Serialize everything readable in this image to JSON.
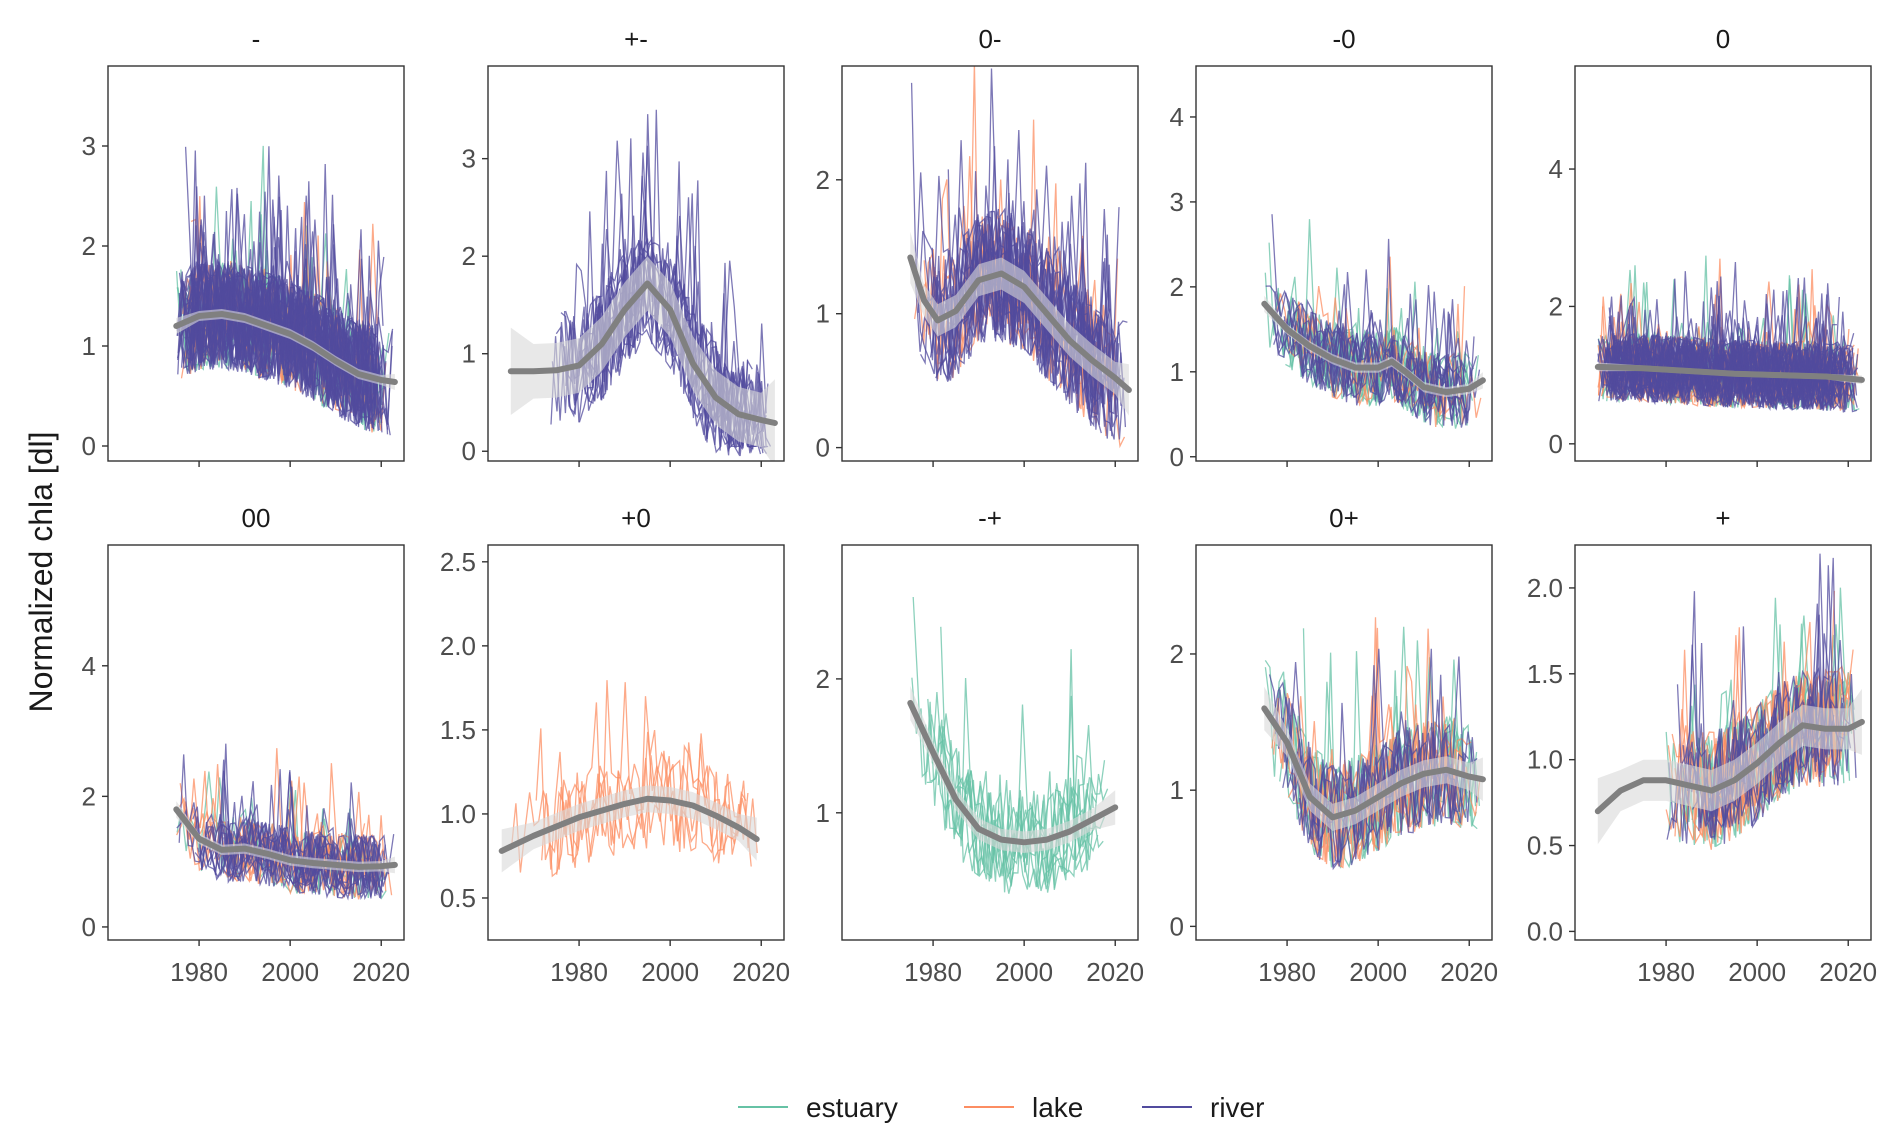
{
  "figure": {
    "ylabel": "Normalized chla [dl]",
    "legend": {
      "position": "bottom",
      "items": [
        {
          "key": "estuary",
          "label": "estuary",
          "color": "#66c2a5"
        },
        {
          "key": "lake",
          "label": "lake",
          "color": "#fc8d62"
        },
        {
          "key": "river",
          "label": "river",
          "color": "#514b9e"
        }
      ]
    },
    "smooth_color": "#808080",
    "ribbon_color": "#d9d9d9"
  },
  "chart_data": [
    {
      "type": "line",
      "title": "-",
      "xlim": [
        1960,
        2025
      ],
      "ylim": [
        -0.15,
        3.8
      ],
      "yticks": [
        0,
        1,
        2,
        3
      ],
      "ytick_labels": [
        "0",
        "1",
        "2",
        "3"
      ],
      "xticks": [
        1980,
        2000,
        2020
      ],
      "xtick_labels": [
        "1980",
        "2000",
        "2020"
      ],
      "series_mix": {
        "estuary": 10,
        "lake": 6,
        "river": 40
      },
      "dense": true,
      "xrange": [
        1975,
        2023
      ],
      "mean_level": 1.1,
      "spread": 0.55,
      "smooth": {
        "x": [
          1975,
          1980,
          1985,
          1990,
          1995,
          2000,
          2005,
          2010,
          2015,
          2020,
          2023
        ],
        "y": [
          1.2,
          1.3,
          1.32,
          1.28,
          1.2,
          1.12,
          1.0,
          0.85,
          0.72,
          0.66,
          0.64
        ]
      },
      "ribbon_halfwidth": 0.05
    },
    {
      "type": "line",
      "title": "+-",
      "xlim": [
        1960,
        2025
      ],
      "ylim": [
        -0.1,
        3.95
      ],
      "yticks": [
        0,
        1,
        2,
        3
      ],
      "ytick_labels": [
        "0",
        "1",
        "2",
        "3"
      ],
      "xticks": [
        1980,
        2000,
        2020
      ],
      "xtick_labels": [
        "1980",
        "2000",
        "2020"
      ],
      "series_mix": {
        "estuary": 0,
        "lake": 0,
        "river": 18
      },
      "dense": false,
      "xrange": [
        1973,
        2023
      ],
      "mean_level": 1.1,
      "spread": 0.6,
      "smooth": {
        "x": [
          1965,
          1970,
          1975,
          1980,
          1985,
          1990,
          1995,
          2000,
          2005,
          2010,
          2015,
          2020,
          2023
        ],
        "y": [
          0.82,
          0.82,
          0.83,
          0.88,
          1.1,
          1.45,
          1.72,
          1.45,
          0.9,
          0.55,
          0.38,
          0.32,
          0.29
        ]
      },
      "ribbon_halfwidth": 0.28
    },
    {
      "type": "line",
      "title": "0-",
      "xlim": [
        1960,
        2025
      ],
      "ylim": [
        -0.1,
        2.85
      ],
      "yticks": [
        0,
        1,
        2
      ],
      "ytick_labels": [
        "0",
        "1",
        "2"
      ],
      "xticks": [
        1980,
        2000,
        2020
      ],
      "xtick_labels": [
        "1980",
        "2000",
        "2020"
      ],
      "series_mix": {
        "estuary": 0,
        "lake": 8,
        "river": 22
      },
      "dense": false,
      "xrange": [
        1975,
        2023
      ],
      "mean_level": 1.1,
      "spread": 0.5,
      "smooth": {
        "x": [
          1975,
          1978,
          1981,
          1985,
          1990,
          1995,
          2000,
          2005,
          2010,
          2015,
          2020,
          2023
        ],
        "y": [
          1.42,
          1.1,
          0.95,
          1.02,
          1.25,
          1.3,
          1.2,
          1.0,
          0.8,
          0.65,
          0.52,
          0.43
        ]
      },
      "ribbon_halfwidth": 0.12
    },
    {
      "type": "line",
      "title": "-0",
      "xlim": [
        1960,
        2025
      ],
      "ylim": [
        -0.05,
        4.6
      ],
      "yticks": [
        0,
        1,
        2,
        3,
        4
      ],
      "ytick_labels": [
        "0",
        "1",
        "2",
        "3",
        "4"
      ],
      "xticks": [
        1980,
        2000,
        2020
      ],
      "xtick_labels": [
        "1980",
        "2000",
        "2020"
      ],
      "series_mix": {
        "estuary": 12,
        "lake": 4,
        "river": 12
      },
      "dense": false,
      "xrange": [
        1975,
        2023
      ],
      "mean_level": 1.1,
      "spread": 0.45,
      "smooth": {
        "x": [
          1975,
          1980,
          1985,
          1990,
          1995,
          2000,
          2003,
          2006,
          2010,
          2015,
          2020,
          2023
        ],
        "y": [
          1.8,
          1.5,
          1.3,
          1.15,
          1.05,
          1.05,
          1.12,
          1.0,
          0.82,
          0.76,
          0.8,
          0.9
        ]
      },
      "ribbon_halfwidth": 0.06
    },
    {
      "type": "line",
      "title": "0",
      "xlim": [
        1960,
        2025
      ],
      "ylim": [
        -0.25,
        5.5
      ],
      "yticks": [
        0,
        2,
        4
      ],
      "ytick_labels": [
        "0",
        "2",
        "4"
      ],
      "xticks": [
        1980,
        2000,
        2020
      ],
      "xtick_labels": [
        "1980",
        "2000",
        "2020"
      ],
      "series_mix": {
        "estuary": 12,
        "lake": 14,
        "river": 40
      },
      "dense": true,
      "xrange": [
        1965,
        2023
      ],
      "mean_level": 1.05,
      "spread": 0.5,
      "smooth": {
        "x": [
          1965,
          1975,
          1985,
          1995,
          2005,
          2015,
          2023
        ],
        "y": [
          1.12,
          1.1,
          1.06,
          1.02,
          1.0,
          0.98,
          0.93
        ]
      },
      "ribbon_halfwidth": 0.04
    },
    {
      "type": "line",
      "title": "00",
      "xlim": [
        1960,
        2025
      ],
      "ylim": [
        -0.2,
        5.85
      ],
      "yticks": [
        0,
        2,
        4
      ],
      "ytick_labels": [
        "0",
        "2",
        "4"
      ],
      "xticks": [
        1980,
        2000,
        2020
      ],
      "xtick_labels": [
        "1980",
        "2000",
        "2020"
      ],
      "series_mix": {
        "estuary": 4,
        "lake": 8,
        "river": 16
      },
      "dense": false,
      "xrange": [
        1975,
        2023
      ],
      "mean_level": 1.05,
      "spread": 0.5,
      "smooth": {
        "x": [
          1975,
          1980,
          1985,
          1990,
          1995,
          2000,
          2005,
          2010,
          2015,
          2020,
          2023
        ],
        "y": [
          1.8,
          1.35,
          1.18,
          1.2,
          1.12,
          1.02,
          0.98,
          0.95,
          0.92,
          0.93,
          0.95
        ]
      },
      "ribbon_halfwidth": 0.08
    },
    {
      "type": "line",
      "title": "+0",
      "xlim": [
        1960,
        2025
      ],
      "ylim": [
        0.25,
        2.6
      ],
      "yticks": [
        0.5,
        1.0,
        1.5,
        2.0,
        2.5
      ],
      "ytick_labels": [
        "0.5",
        "1.0",
        "1.5",
        "2.0",
        "2.5"
      ],
      "xticks": [
        1980,
        2000,
        2020
      ],
      "xtick_labels": [
        "1980",
        "2000",
        "2020"
      ],
      "series_mix": {
        "estuary": 0,
        "lake": 5,
        "river": 0
      },
      "dense": false,
      "xrange": [
        1965,
        2020
      ],
      "mean_level": 1.0,
      "spread": 0.3,
      "smooth": {
        "x": [
          1963,
          1970,
          1980,
          1990,
          1995,
          2000,
          2005,
          2010,
          2015,
          2019
        ],
        "y": [
          0.78,
          0.87,
          0.98,
          1.06,
          1.09,
          1.08,
          1.05,
          0.99,
          0.92,
          0.85
        ]
      },
      "ribbon_halfwidth": 0.08
    },
    {
      "type": "line",
      "title": "-+",
      "xlim": [
        1960,
        2025
      ],
      "ylim": [
        0.05,
        3.0
      ],
      "yticks": [
        1,
        2
      ],
      "ytick_labels": [
        "1",
        "2"
      ],
      "xticks": [
        1980,
        2000,
        2020
      ],
      "xtick_labels": [
        "1980",
        "2000",
        "2020"
      ],
      "series_mix": {
        "estuary": 10,
        "lake": 0,
        "river": 0
      },
      "dense": false,
      "xrange": [
        1975,
        2020
      ],
      "mean_level": 1.1,
      "spread": 0.4,
      "smooth": {
        "x": [
          1975,
          1980,
          1985,
          1990,
          1995,
          2000,
          2005,
          2010,
          2015,
          2020
        ],
        "y": [
          1.82,
          1.45,
          1.1,
          0.88,
          0.8,
          0.78,
          0.8,
          0.86,
          0.95,
          1.04
        ]
      },
      "ribbon_halfwidth": 0.08
    },
    {
      "type": "line",
      "title": "0+",
      "xlim": [
        1960,
        2025
      ],
      "ylim": [
        -0.1,
        2.8
      ],
      "yticks": [
        0,
        1,
        2
      ],
      "ytick_labels": [
        "0",
        "1",
        "2"
      ],
      "xticks": [
        1980,
        2000,
        2020
      ],
      "xtick_labels": [
        "1980",
        "2000",
        "2020"
      ],
      "series_mix": {
        "estuary": 10,
        "lake": 8,
        "river": 8
      },
      "dense": false,
      "xrange": [
        1975,
        2023
      ],
      "mean_level": 1.0,
      "spread": 0.4,
      "smooth": {
        "x": [
          1975,
          1980,
          1985,
          1990,
          1995,
          2000,
          2005,
          2010,
          2015,
          2020,
          2023
        ],
        "y": [
          1.6,
          1.35,
          0.95,
          0.8,
          0.85,
          0.95,
          1.05,
          1.12,
          1.15,
          1.1,
          1.08
        ]
      },
      "ribbon_halfwidth": 0.1
    },
    {
      "type": "line",
      "title": "+",
      "xlim": [
        1960,
        2025
      ],
      "ylim": [
        -0.05,
        2.25
      ],
      "yticks": [
        0.0,
        0.5,
        1.0,
        1.5,
        2.0
      ],
      "ytick_labels": [
        "0.0",
        "0.5",
        "1.0",
        "1.5",
        "2.0"
      ],
      "xticks": [
        1980,
        2000,
        2020
      ],
      "xtick_labels": [
        "1980",
        "2000",
        "2020"
      ],
      "series_mix": {
        "estuary": 10,
        "lake": 10,
        "river": 10
      },
      "dense": false,
      "xrange": [
        1980,
        2023
      ],
      "mean_level": 1.0,
      "spread": 0.35,
      "smooth": {
        "x": [
          1965,
          1970,
          1975,
          1980,
          1985,
          1990,
          1995,
          2000,
          2005,
          2010,
          2015,
          2020,
          2023
        ],
        "y": [
          0.7,
          0.82,
          0.88,
          0.88,
          0.85,
          0.82,
          0.88,
          0.98,
          1.1,
          1.2,
          1.18,
          1.18,
          1.22
        ]
      },
      "ribbon_halfwidth": 0.12
    }
  ]
}
